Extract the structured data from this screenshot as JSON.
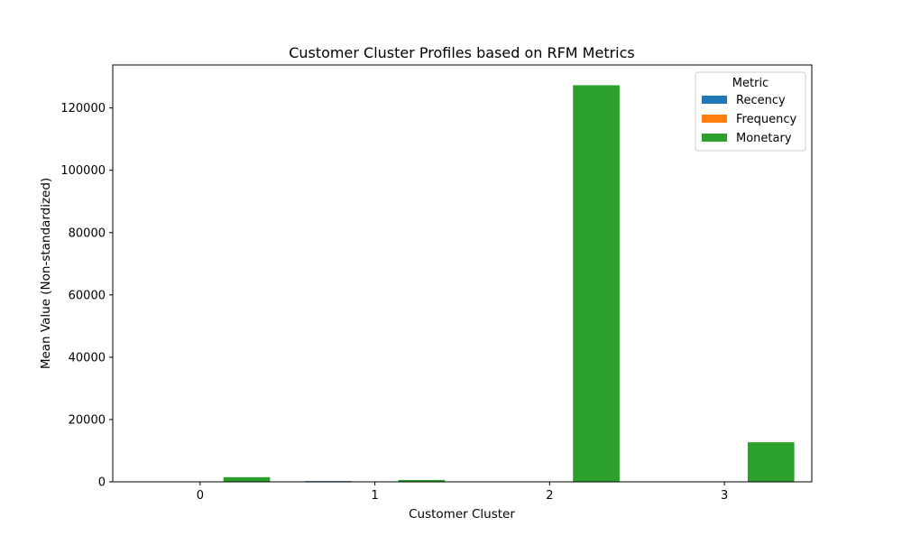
{
  "chart_data": {
    "type": "bar",
    "title": "Customer Cluster Profiles based on RFM Metrics",
    "xlabel": "Customer Cluster",
    "ylabel": "Mean Value (Non-standardized)",
    "categories": [
      "0",
      "1",
      "2",
      "3"
    ],
    "yticks": [
      0,
      20000,
      40000,
      60000,
      80000,
      100000,
      120000
    ],
    "ylim": [
      0,
      133800
    ],
    "legend": {
      "title": "Metric",
      "position": "top-right"
    },
    "series": [
      {
        "name": "Recency",
        "color": "#1f77b4",
        "values": [
          30,
          250,
          10,
          20
        ]
      },
      {
        "name": "Frequency",
        "color": "#ff7f0e",
        "values": [
          4,
          2,
          80,
          20
        ]
      },
      {
        "name": "Monetary",
        "color": "#2ca02c",
        "values": [
          1500,
          600,
          127300,
          12700
        ]
      }
    ]
  }
}
